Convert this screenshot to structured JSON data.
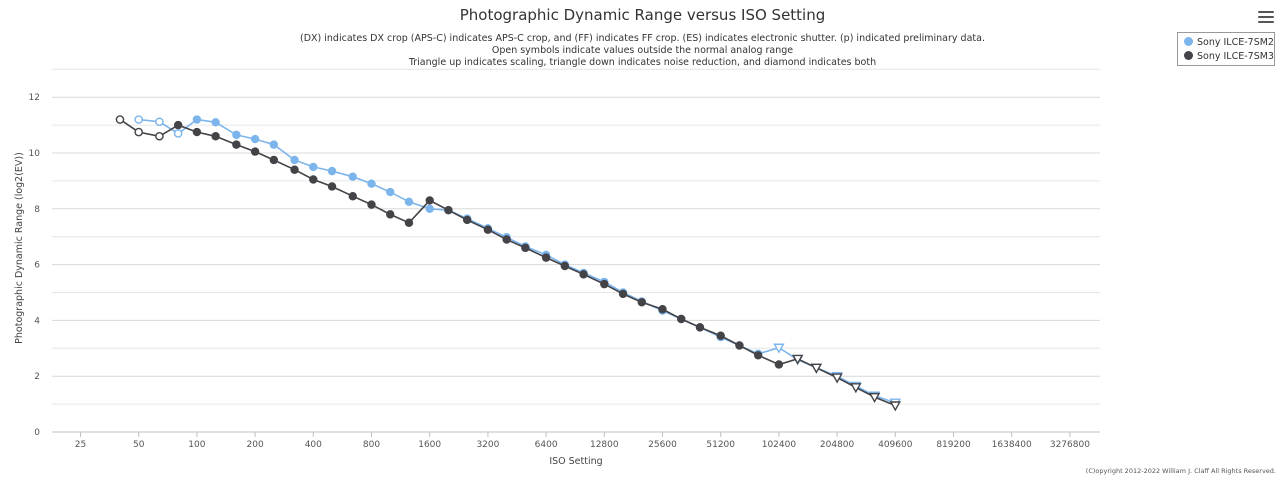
{
  "header": {
    "title": "Photographic Dynamic Range versus ISO Setting",
    "subtitle_lines": [
      "(DX) indicates DX crop (APS-C) indicates APS-C crop, and (FF) indicates FF crop. (ES) indicates electronic shutter. (p) indicated preliminary data.",
      "Open symbols indicate values outside the normal analog range",
      "Triangle up indicates scaling, triangle down indicates noise reduction, and diamond indicates both"
    ]
  },
  "menu": {
    "icon": "hamburger-menu-icon"
  },
  "legend": {
    "placement": "top-right",
    "items": [
      {
        "label": "Sony ILCE-7SM2",
        "color": "#7cb5ec"
      },
      {
        "label": "Sony ILCE-7SM3",
        "color": "#434348"
      }
    ]
  },
  "copyright": "(C)opyright 2012-2022 William J. Claff All Rights Reserved.",
  "chart_data": {
    "type": "line",
    "title": "Photographic Dynamic Range versus ISO Setting",
    "xlabel": "ISO Setting",
    "ylabel": "Photographic Dynamic Range (log2(EV))",
    "x_scale": "log2",
    "x_ticks": [
      "25",
      "50",
      "100",
      "200",
      "400",
      "800",
      "1600",
      "3200",
      "6400",
      "12800",
      "25600",
      "51200",
      "102400",
      "204800",
      "409600",
      "819200",
      "1638400",
      "3276800"
    ],
    "y_ticks": [
      "0",
      "2",
      "4",
      "6",
      "8",
      "10",
      "12"
    ],
    "ylim": [
      0,
      12
    ],
    "grid": true,
    "series": [
      {
        "name": "Sony ILCE-7SM2",
        "color": "#7cb5ec",
        "points": [
          {
            "iso": 50,
            "dr": 11.2,
            "symbol": "open-circle"
          },
          {
            "iso": 64,
            "dr": 11.12,
            "symbol": "open-circle"
          },
          {
            "iso": 80,
            "dr": 10.7,
            "symbol": "open-circle"
          },
          {
            "iso": 100,
            "dr": 11.2,
            "symbol": "circle"
          },
          {
            "iso": 125,
            "dr": 11.1,
            "symbol": "circle"
          },
          {
            "iso": 160,
            "dr": 10.65,
            "symbol": "circle"
          },
          {
            "iso": 200,
            "dr": 10.5,
            "symbol": "circle"
          },
          {
            "iso": 250,
            "dr": 10.3,
            "symbol": "circle"
          },
          {
            "iso": 320,
            "dr": 9.75,
            "symbol": "circle"
          },
          {
            "iso": 400,
            "dr": 9.5,
            "symbol": "circle"
          },
          {
            "iso": 500,
            "dr": 9.35,
            "symbol": "circle"
          },
          {
            "iso": 640,
            "dr": 9.15,
            "symbol": "circle"
          },
          {
            "iso": 800,
            "dr": 8.9,
            "symbol": "circle"
          },
          {
            "iso": 1000,
            "dr": 8.6,
            "symbol": "circle"
          },
          {
            "iso": 1250,
            "dr": 8.25,
            "symbol": "circle"
          },
          {
            "iso": 1600,
            "dr": 8.0,
            "symbol": "circle"
          },
          {
            "iso": 2000,
            "dr": 7.95,
            "symbol": "circle"
          },
          {
            "iso": 2500,
            "dr": 7.65,
            "symbol": "circle"
          },
          {
            "iso": 3200,
            "dr": 7.3,
            "symbol": "circle"
          },
          {
            "iso": 4000,
            "dr": 6.98,
            "symbol": "circle"
          },
          {
            "iso": 5000,
            "dr": 6.65,
            "symbol": "circle"
          },
          {
            "iso": 6400,
            "dr": 6.35,
            "symbol": "circle"
          },
          {
            "iso": 8000,
            "dr": 6.0,
            "symbol": "circle"
          },
          {
            "iso": 10000,
            "dr": 5.7,
            "symbol": "circle"
          },
          {
            "iso": 12800,
            "dr": 5.38,
            "symbol": "circle"
          },
          {
            "iso": 16000,
            "dr": 5.0,
            "symbol": "circle"
          },
          {
            "iso": 20000,
            "dr": 4.68,
            "symbol": "circle"
          },
          {
            "iso": 25600,
            "dr": 4.35,
            "symbol": "circle"
          },
          {
            "iso": 32000,
            "dr": 4.05,
            "symbol": "circle"
          },
          {
            "iso": 40000,
            "dr": 3.75,
            "symbol": "circle"
          },
          {
            "iso": 51200,
            "dr": 3.4,
            "symbol": "circle"
          },
          {
            "iso": 64000,
            "dr": 3.1,
            "symbol": "circle"
          },
          {
            "iso": 80000,
            "dr": 2.8,
            "symbol": "circle"
          },
          {
            "iso": 102400,
            "dr": 3.02,
            "symbol": "open-triangle-down"
          },
          {
            "iso": 128000,
            "dr": 2.6,
            "symbol": "open-triangle-down"
          },
          {
            "iso": 160000,
            "dr": 2.3,
            "symbol": "open-triangle-down"
          },
          {
            "iso": 204800,
            "dr": 2.0,
            "symbol": "open-triangle-down"
          },
          {
            "iso": 256000,
            "dr": 1.65,
            "symbol": "open-triangle-down"
          },
          {
            "iso": 320000,
            "dr": 1.3,
            "symbol": "open-triangle-down"
          },
          {
            "iso": 409600,
            "dr": 1.05,
            "symbol": "open-triangle-down"
          }
        ]
      },
      {
        "name": "Sony ILCE-7SM3",
        "color": "#434348",
        "points": [
          {
            "iso": 40,
            "dr": 11.2,
            "symbol": "open-circle"
          },
          {
            "iso": 50,
            "dr": 10.75,
            "symbol": "open-circle"
          },
          {
            "iso": 64,
            "dr": 10.6,
            "symbol": "open-circle"
          },
          {
            "iso": 80,
            "dr": 11.0,
            "symbol": "circle"
          },
          {
            "iso": 100,
            "dr": 10.75,
            "symbol": "circle"
          },
          {
            "iso": 125,
            "dr": 10.6,
            "symbol": "circle"
          },
          {
            "iso": 160,
            "dr": 10.3,
            "symbol": "circle"
          },
          {
            "iso": 200,
            "dr": 10.05,
            "symbol": "circle"
          },
          {
            "iso": 250,
            "dr": 9.75,
            "symbol": "circle"
          },
          {
            "iso": 320,
            "dr": 9.4,
            "symbol": "circle"
          },
          {
            "iso": 400,
            "dr": 9.05,
            "symbol": "circle"
          },
          {
            "iso": 500,
            "dr": 8.8,
            "symbol": "circle"
          },
          {
            "iso": 640,
            "dr": 8.45,
            "symbol": "circle"
          },
          {
            "iso": 800,
            "dr": 8.15,
            "symbol": "circle"
          },
          {
            "iso": 1000,
            "dr": 7.8,
            "symbol": "circle"
          },
          {
            "iso": 1250,
            "dr": 7.5,
            "symbol": "circle"
          },
          {
            "iso": 1600,
            "dr": 8.3,
            "symbol": "circle"
          },
          {
            "iso": 2000,
            "dr": 7.95,
            "symbol": "circle"
          },
          {
            "iso": 2500,
            "dr": 7.6,
            "symbol": "circle"
          },
          {
            "iso": 3200,
            "dr": 7.25,
            "symbol": "circle"
          },
          {
            "iso": 4000,
            "dr": 6.9,
            "symbol": "circle"
          },
          {
            "iso": 5000,
            "dr": 6.6,
            "symbol": "circle"
          },
          {
            "iso": 6400,
            "dr": 6.25,
            "symbol": "circle"
          },
          {
            "iso": 8000,
            "dr": 5.95,
            "symbol": "circle"
          },
          {
            "iso": 10000,
            "dr": 5.65,
            "symbol": "circle"
          },
          {
            "iso": 12800,
            "dr": 5.3,
            "symbol": "circle"
          },
          {
            "iso": 16000,
            "dr": 4.95,
            "symbol": "circle"
          },
          {
            "iso": 20000,
            "dr": 4.65,
            "symbol": "circle"
          },
          {
            "iso": 25600,
            "dr": 4.4,
            "symbol": "circle"
          },
          {
            "iso": 32000,
            "dr": 4.05,
            "symbol": "circle"
          },
          {
            "iso": 40000,
            "dr": 3.75,
            "symbol": "circle"
          },
          {
            "iso": 51200,
            "dr": 3.45,
            "symbol": "circle"
          },
          {
            "iso": 64000,
            "dr": 3.1,
            "symbol": "circle"
          },
          {
            "iso": 80000,
            "dr": 2.75,
            "symbol": "circle"
          },
          {
            "iso": 102400,
            "dr": 2.42,
            "symbol": "circle"
          },
          {
            "iso": 128000,
            "dr": 2.62,
            "symbol": "open-triangle-down"
          },
          {
            "iso": 160000,
            "dr": 2.3,
            "symbol": "open-triangle-down"
          },
          {
            "iso": 204800,
            "dr": 1.95,
            "symbol": "open-triangle-down"
          },
          {
            "iso": 256000,
            "dr": 1.6,
            "symbol": "open-triangle-down"
          },
          {
            "iso": 320000,
            "dr": 1.25,
            "symbol": "open-triangle-down"
          },
          {
            "iso": 409600,
            "dr": 0.95,
            "symbol": "open-triangle-down"
          }
        ]
      }
    ]
  }
}
